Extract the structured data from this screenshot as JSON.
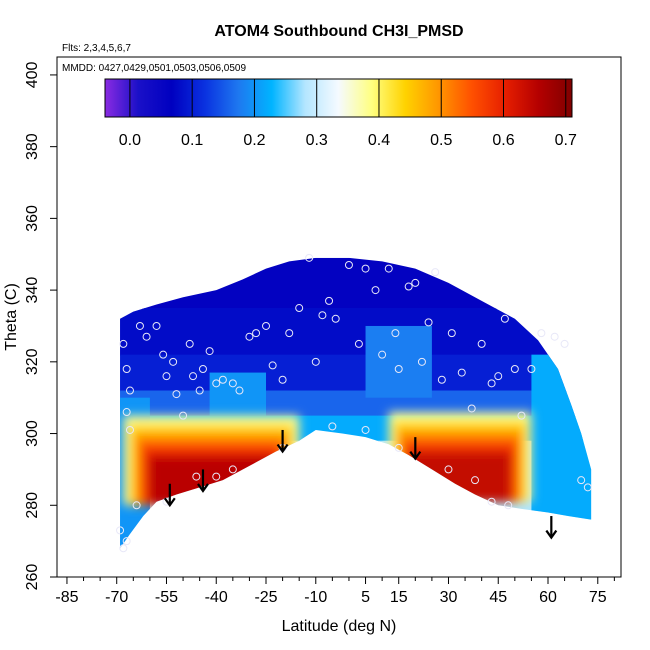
{
  "chart_data": {
    "type": "heatmap",
    "title": "ATOM4 Southbound CH3I_PMSD",
    "flights_text": "Flts: 2,3,4,5,6,7",
    "mmdd_text": "MMDD: 0427,0429,0501,0503,0506,0509",
    "xlabel": "Latitude (deg N)",
    "ylabel": "Theta (C)",
    "xlim": [
      -88,
      82
    ],
    "ylim": [
      260,
      405
    ],
    "x_ticks": [
      -85,
      -70,
      -55,
      -40,
      -25,
      -10,
      5,
      15,
      30,
      45,
      60,
      75
    ],
    "x_tick_labels": [
      "-85",
      "-70",
      "-55",
      "-40",
      "-25",
      "-10",
      "5",
      "15",
      "30",
      "45",
      "60",
      "75"
    ],
    "x_minor_ticks": [
      -80,
      -75,
      -65,
      -60,
      -50,
      -45,
      -35,
      -30,
      -20,
      -15,
      -5,
      0,
      10,
      20,
      25,
      35,
      40,
      50,
      55,
      65,
      70,
      80
    ],
    "y_ticks": [
      260,
      280,
      300,
      320,
      340,
      360,
      380,
      400
    ],
    "y_tick_labels": [
      "260",
      "280",
      "300",
      "320",
      "340",
      "360",
      "380",
      "400"
    ],
    "colorbar": {
      "range": [
        -0.04,
        0.71
      ],
      "ticks": [
        0.0,
        0.1,
        0.2,
        0.3,
        0.4,
        0.5,
        0.6,
        0.7
      ],
      "tick_labels": [
        "0.0",
        "0.1",
        "0.2",
        "0.3",
        "0.4",
        "0.5",
        "0.6",
        "0.7"
      ],
      "colors": [
        "#8a2be2",
        "#1a10c8",
        "#0000c0",
        "#0a32e0",
        "#1e78f0",
        "#00b4ff",
        "#b4e6ff",
        "#f5faff",
        "#ffff80",
        "#ffd200",
        "#ff9600",
        "#ff5000",
        "#e61e00",
        "#b40000",
        "#800000"
      ]
    },
    "domain_bounds": {
      "x_min": -69,
      "x_max": 73,
      "upper_boundary": [
        [
          -69,
          332
        ],
        [
          -65,
          334
        ],
        [
          -58,
          336
        ],
        [
          -50,
          338
        ],
        [
          -40,
          340
        ],
        [
          -32,
          343
        ],
        [
          -25,
          346
        ],
        [
          -18,
          348
        ],
        [
          -10,
          349
        ],
        [
          0,
          349
        ],
        [
          10,
          348
        ],
        [
          20,
          346
        ],
        [
          30,
          342
        ],
        [
          40,
          337
        ],
        [
          50,
          332
        ],
        [
          57,
          326
        ],
        [
          63,
          318
        ],
        [
          67,
          308
        ],
        [
          70,
          300
        ],
        [
          73,
          290
        ]
      ],
      "lower_boundary": [
        [
          -69,
          268
        ],
        [
          -66,
          272
        ],
        [
          -62,
          277
        ],
        [
          -58,
          281
        ],
        [
          -52,
          283
        ],
        [
          -45,
          285
        ],
        [
          -38,
          287
        ],
        [
          -30,
          291
        ],
        [
          -22,
          295
        ],
        [
          -15,
          298
        ],
        [
          -10,
          301
        ],
        [
          -2,
          300
        ],
        [
          5,
          299
        ],
        [
          12,
          297
        ],
        [
          18,
          294
        ],
        [
          25,
          290
        ],
        [
          32,
          286
        ],
        [
          38,
          283
        ],
        [
          45,
          280
        ],
        [
          52,
          279
        ],
        [
          60,
          278
        ],
        [
          66,
          277
        ],
        [
          73,
          276
        ]
      ]
    },
    "enhancement_regions": [
      {
        "x_range": [
          -68,
          -15
        ],
        "theta_range": [
          280,
          305
        ],
        "value": 0.65
      },
      {
        "x_range": [
          12,
          55
        ],
        "theta_range": [
          281,
          306
        ],
        "value": 0.64
      }
    ],
    "observations": [
      [
        -68,
        325
      ],
      [
        -67,
        318
      ],
      [
        -66,
        312
      ],
      [
        -67,
        306
      ],
      [
        -66,
        301
      ],
      [
        -63,
        330
      ],
      [
        -61,
        327
      ],
      [
        -58,
        330
      ],
      [
        -56,
        322
      ],
      [
        -55,
        316
      ],
      [
        -53,
        320
      ],
      [
        -52,
        311
      ],
      [
        -50,
        305
      ],
      [
        -48,
        325
      ],
      [
        -47,
        316
      ],
      [
        -45,
        312
      ],
      [
        -44,
        318
      ],
      [
        -42,
        323
      ],
      [
        -40,
        314
      ],
      [
        -38,
        315
      ],
      [
        -35,
        314
      ],
      [
        -33,
        312
      ],
      [
        -30,
        327
      ],
      [
        -28,
        328
      ],
      [
        -25,
        330
      ],
      [
        -23,
        319
      ],
      [
        -20,
        315
      ],
      [
        -18,
        328
      ],
      [
        -15,
        335
      ],
      [
        -12,
        349
      ],
      [
        -10,
        320
      ],
      [
        -8,
        333
      ],
      [
        -6,
        337
      ],
      [
        -4,
        332
      ],
      [
        0,
        347
      ],
      [
        3,
        325
      ],
      [
        5,
        346
      ],
      [
        8,
        340
      ],
      [
        10,
        322
      ],
      [
        12,
        346
      ],
      [
        14,
        328
      ],
      [
        15,
        318
      ],
      [
        18,
        341
      ],
      [
        20,
        342
      ],
      [
        22,
        320
      ],
      [
        24,
        331
      ],
      [
        26,
        345
      ],
      [
        28,
        315
      ],
      [
        31,
        328
      ],
      [
        34,
        317
      ],
      [
        37,
        307
      ],
      [
        40,
        325
      ],
      [
        43,
        314
      ],
      [
        45,
        316
      ],
      [
        47,
        332
      ],
      [
        50,
        318
      ],
      [
        52,
        305
      ],
      [
        55,
        318
      ],
      [
        58,
        328
      ],
      [
        62,
        327
      ],
      [
        65,
        325
      ],
      [
        -64,
        280
      ],
      [
        -55,
        281
      ],
      [
        -46,
        288
      ],
      [
        -40,
        288
      ],
      [
        -35,
        290
      ],
      [
        -20,
        296
      ],
      [
        -5,
        302
      ],
      [
        5,
        301
      ],
      [
        15,
        296
      ],
      [
        30,
        290
      ],
      [
        38,
        287
      ],
      [
        43,
        281
      ],
      [
        48,
        280
      ],
      [
        70,
        287
      ],
      [
        72,
        285
      ],
      [
        -68,
        268
      ],
      [
        -69,
        273
      ],
      [
        -67,
        270
      ]
    ],
    "arrows": [
      {
        "lat": -54,
        "theta_top": 286,
        "theta_bottom": 280
      },
      {
        "lat": -44,
        "theta_top": 290,
        "theta_bottom": 284
      },
      {
        "lat": -20,
        "theta_top": 301,
        "theta_bottom": 295
      },
      {
        "lat": 20,
        "theta_top": 299,
        "theta_bottom": 293
      },
      {
        "lat": 61,
        "theta_top": 277,
        "theta_bottom": 271
      }
    ]
  }
}
